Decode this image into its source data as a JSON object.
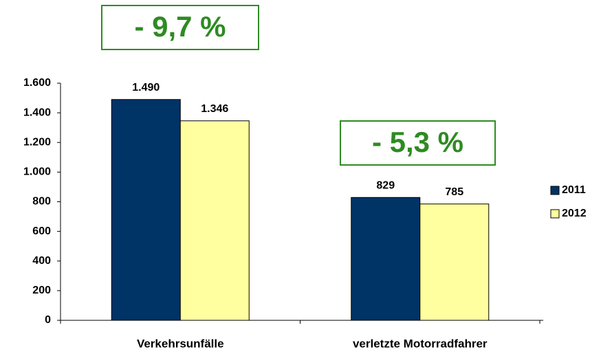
{
  "chart_data": {
    "type": "bar",
    "categories": [
      "Verkehrsunfälle",
      "verletzte Motorradfahrer"
    ],
    "series": [
      {
        "name": "2011",
        "color": "#003366",
        "values": [
          1490,
          829
        ],
        "value_labels": [
          "1.490",
          "829"
        ]
      },
      {
        "name": "2012",
        "color": "#ffffa0",
        "values": [
          1346,
          785
        ],
        "value_labels": [
          "1.346",
          "785"
        ]
      }
    ],
    "ylim": [
      0,
      1600
    ],
    "yticks": [
      0,
      200,
      400,
      600,
      800,
      {
        "value": 1000,
        "label": "1.000"
      },
      {
        "value": 1200,
        "label": "1.200"
      },
      {
        "value": 1400,
        "label": "1.400"
      },
      {
        "value": 1600,
        "label": "1.600"
      }
    ],
    "legend": "right",
    "annotations": [
      "- 9,7 %",
      "- 5,3 %"
    ]
  }
}
